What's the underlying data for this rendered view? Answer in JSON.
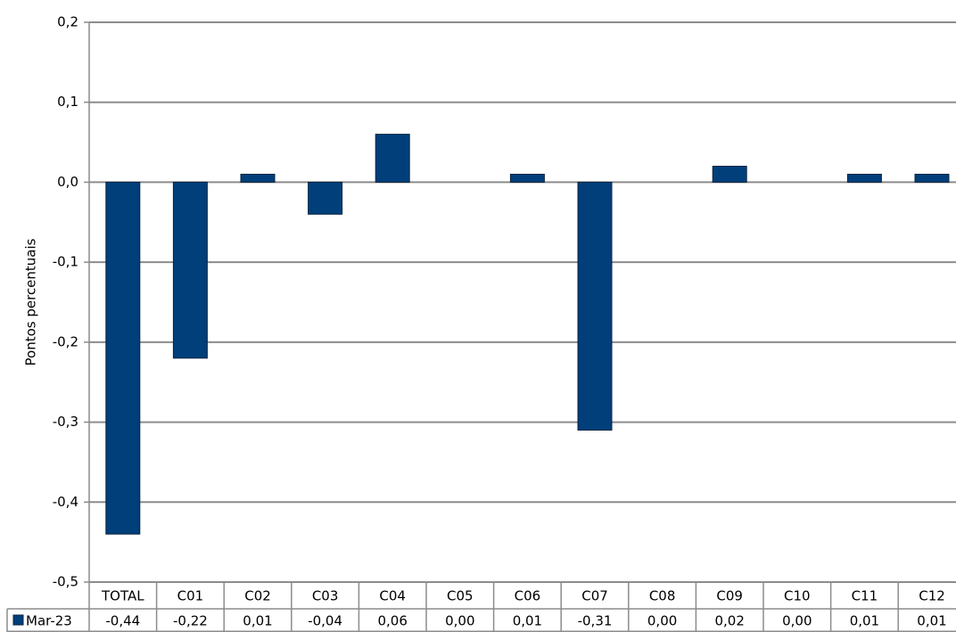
{
  "chart_data": {
    "type": "bar",
    "y_label": "Pontos percentuais",
    "categories": [
      "TOTAL",
      "C01",
      "C02",
      "C03",
      "C04",
      "C05",
      "C06",
      "C07",
      "C08",
      "C09",
      "C10",
      "C11",
      "C12"
    ],
    "series": [
      {
        "name": "Mar-23",
        "color": "#003f7a",
        "values": [
          -0.44,
          -0.22,
          0.01,
          -0.04,
          0.06,
          0.0,
          0.01,
          -0.31,
          0.0,
          0.02,
          0.0,
          0.01,
          0.01
        ],
        "value_labels": [
          "-0,44",
          "-0,22",
          "0,01",
          "-0,04",
          "0,06",
          "0,00",
          "0,01",
          "-0,31",
          "0,00",
          "0,02",
          "0,00",
          "0,01",
          "0,01"
        ]
      }
    ],
    "ylim": [
      -0.5,
      0.2
    ],
    "yticks": [
      {
        "value": -0.5,
        "label": "-0,5"
      },
      {
        "value": -0.4,
        "label": "-0,4"
      },
      {
        "value": -0.3,
        "label": "-0,3"
      },
      {
        "value": -0.2,
        "label": "-0,2"
      },
      {
        "value": -0.1,
        "label": "-0,1"
      },
      {
        "value": 0,
        "label": "0,0"
      },
      {
        "value": 0.1,
        "label": "0,1"
      },
      {
        "value": 0.2,
        "label": "0,2"
      }
    ],
    "grid": true,
    "data_table": true
  }
}
